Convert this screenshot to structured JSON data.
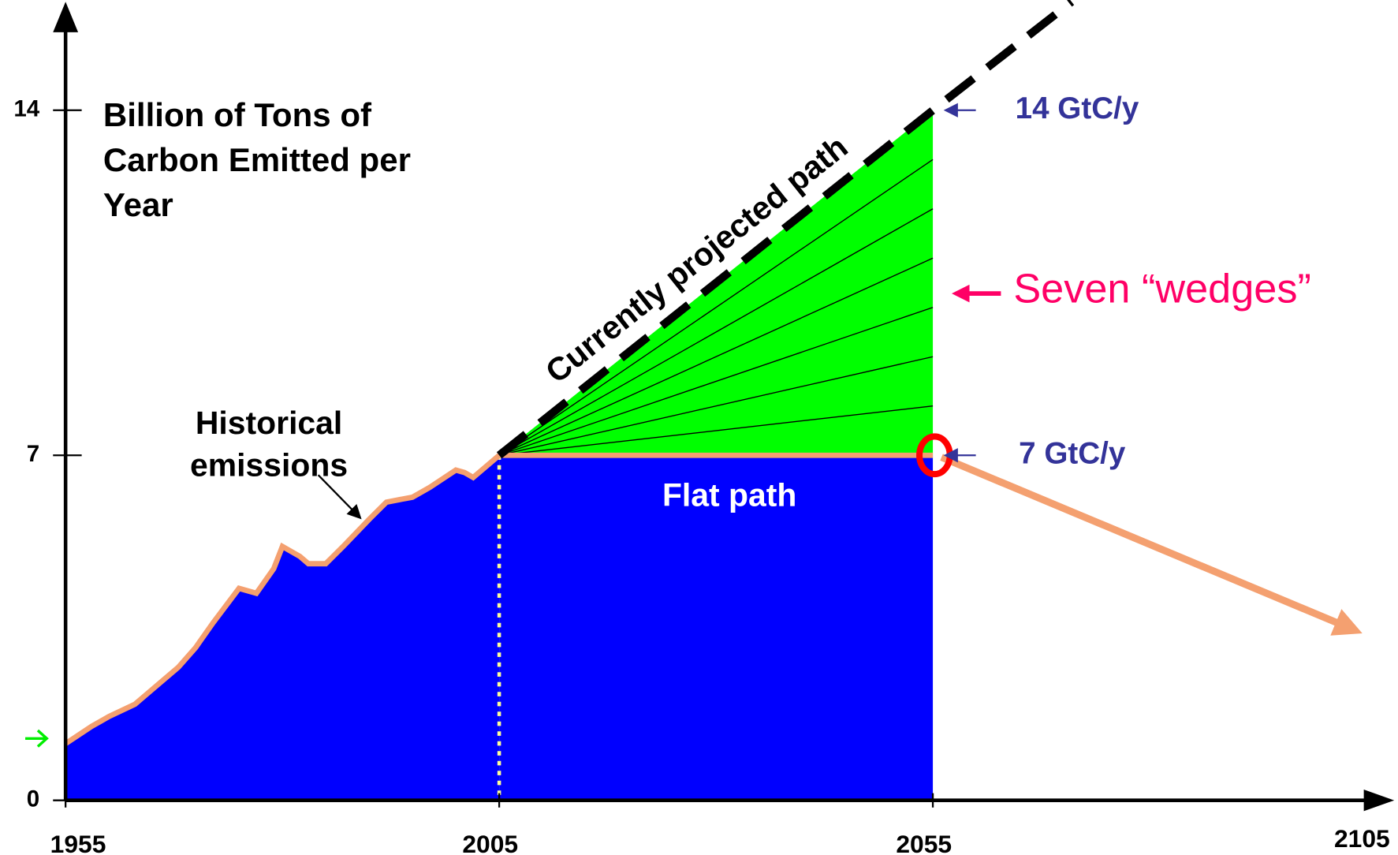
{
  "chart_data": {
    "type": "line",
    "y_label": "Billion of Tons of Carbon Emitted per Year",
    "xlim": [
      1955,
      2105
    ],
    "ylim": [
      0,
      16.2
    ],
    "xticks": [
      1955,
      2005,
      2055,
      2105
    ],
    "yticks": [
      0,
      7,
      14
    ],
    "series": [
      {
        "name": "Historical emissions",
        "color": "#f4a070",
        "fill": "#0000ff",
        "x": [
          1955,
          1958,
          1960,
          1963,
          1965,
          1968,
          1970,
          1972,
          1975,
          1977,
          1979,
          1980,
          1982,
          1983,
          1985,
          1987,
          1990,
          1992,
          1995,
          1997,
          2000,
          2001,
          2002,
          2005
        ],
        "values": [
          1.15,
          1.5,
          1.7,
          1.95,
          2.25,
          2.7,
          3.1,
          3.6,
          4.3,
          4.2,
          4.7,
          5.15,
          4.95,
          4.8,
          4.8,
          5.15,
          5.7,
          6.05,
          6.15,
          6.35,
          6.7,
          6.65,
          6.55,
          7.0
        ]
      },
      {
        "name": "Currently projected path",
        "color": "#000000",
        "x": [
          2005,
          2055,
          2071
        ],
        "values": [
          7,
          14,
          16.2
        ]
      },
      {
        "name": "Flat path",
        "color": "#f4a070",
        "fill": "#0000ff",
        "x": [
          2005,
          2055
        ],
        "values": [
          7,
          7
        ]
      },
      {
        "color": "#f4a070",
        "x": [
          2056,
          2103
        ],
        "values": [
          6.96,
          3.5
        ]
      }
    ],
    "wedges": {
      "label": "Seven “wedges”",
      "color": "#00ff00",
      "label_color": "#ff0066",
      "x": 2055,
      "boundaries": [
        8,
        9,
        10,
        11,
        12,
        13
      ]
    },
    "annotations": [
      {
        "text": "14 GtC/y",
        "x": 2055,
        "y": 14,
        "color": "#333399"
      },
      {
        "text": "7 GtC/y",
        "x": 2055,
        "y": 7,
        "color": "#333399"
      }
    ]
  }
}
